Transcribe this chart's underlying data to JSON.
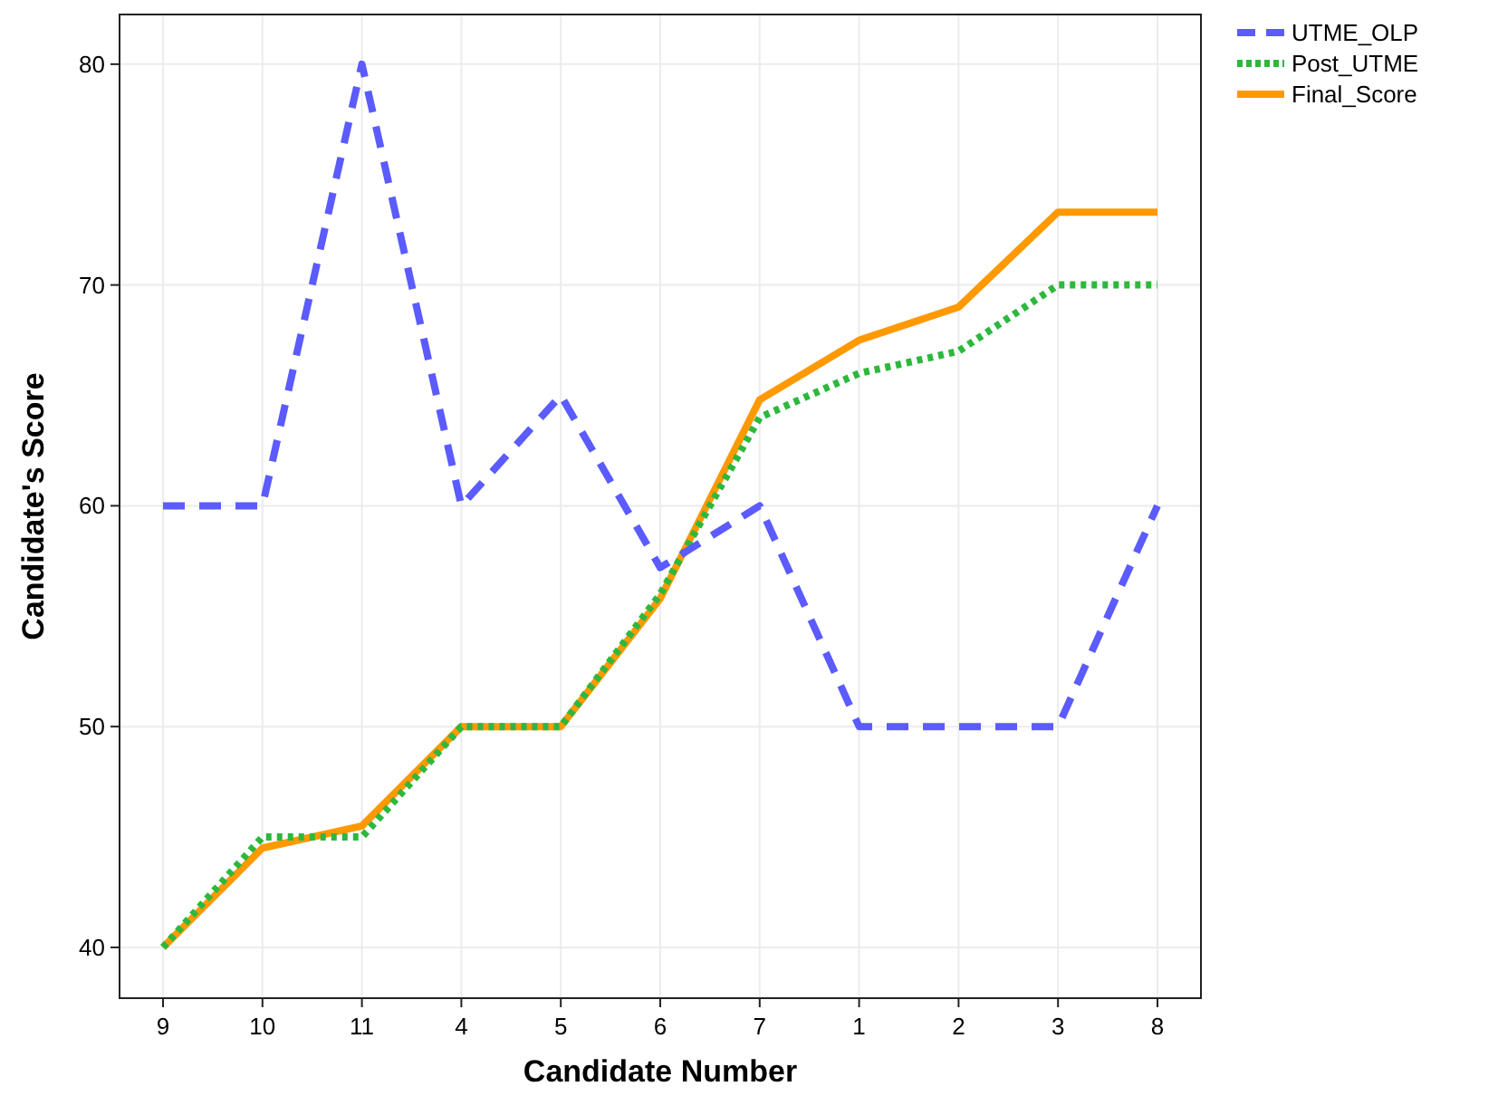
{
  "chart_data": {
    "type": "line",
    "xlabel": "Candidate Number",
    "ylabel": "Candidate's Score",
    "categories": [
      "9",
      "10",
      "11",
      "4",
      "5",
      "6",
      "7",
      "1",
      "2",
      "3",
      "8"
    ],
    "series": [
      {
        "name": "UTME_OLP",
        "color": "#5b5bff",
        "line_style": "dashed",
        "values": [
          60,
          60,
          80,
          60,
          65,
          57.2,
          60,
          50,
          50,
          50,
          60
        ]
      },
      {
        "name": "Post_UTME",
        "color": "#2db83d",
        "line_style": "dotted",
        "values": [
          40,
          45,
          45,
          50,
          50,
          56,
          64,
          66,
          67,
          70,
          70
        ]
      },
      {
        "name": "Final_Score",
        "color": "#ff9900",
        "line_style": "solid",
        "values": [
          40,
          44.5,
          45.5,
          50,
          50,
          55.8,
          64.8,
          67.5,
          69,
          73.3,
          73.3
        ]
      }
    ],
    "ylim": [
      37.7,
      82.25
    ],
    "yticks": [
      40,
      50,
      60,
      70,
      80
    ],
    "grid": true,
    "legend": "top right",
    "marker": "none"
  }
}
